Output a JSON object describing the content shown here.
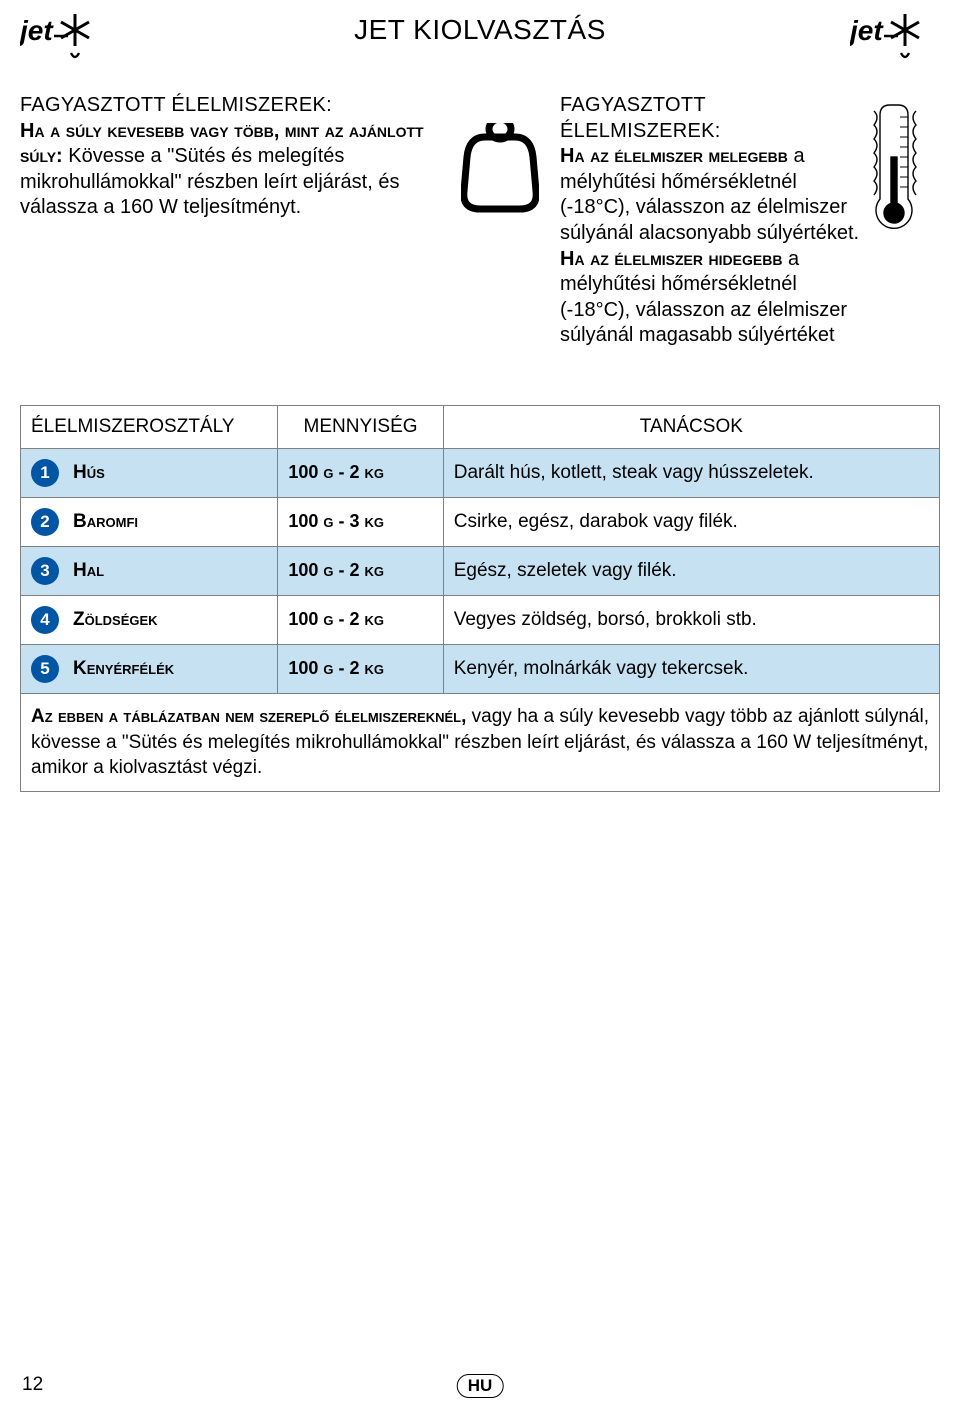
{
  "title": "JET KIOLVASZTÁS",
  "logo_text": "jet",
  "left": {
    "heading": "FAGYASZTOTT ÉLELMISZEREK:",
    "lead_sc": "Ha a súly kevesebb vagy több, mint az ajánlott súly:",
    "body": " Kövesse a \"Sütés és melegítés mikrohullámokkal\" részben leírt eljárást, és válassza a 160 W teljesítményt."
  },
  "right": {
    "heading": "FAGYASZTOTT ÉLELMISZEREK:",
    "p1_sc": "Ha az élelmiszer melegebb",
    "p1_rest": " a mélyhűtési hőmérsékletnél (-18°C), válasszon az élelmiszer súlyánál alacsonyabb súlyértéket.",
    "p2_sc": "Ha az élelmiszer hidegebb",
    "p2_rest": " a mélyhűtési hőmérsékletnél (-18°C), válasszon az élelmiszer súlyánál magasabb súlyértéket"
  },
  "table": {
    "headers": [
      "ÉLELMISZEROSZTÁLY",
      "MENNYISÉG",
      "TANÁCSOK"
    ],
    "col_widths": [
      "28%",
      "18%",
      "54%"
    ],
    "row_colors": {
      "blue": "#c6e2f2",
      "white": "#ffffff"
    },
    "badge_bg": "#0055a4",
    "rows": [
      {
        "n": "1",
        "cat": "Hús",
        "qty": "100 g - 2 kg",
        "tip": "Darált hús, kotlett, steak vagy hússzeletek.",
        "bg": "blue"
      },
      {
        "n": "2",
        "cat": "Baromfi",
        "qty": "100 g - 3 kg",
        "tip": "Csirke, egész, darabok vagy filék.",
        "bg": "white"
      },
      {
        "n": "3",
        "cat": "Hal",
        "qty": "100 g - 2 kg",
        "tip": "Egész, szeletek vagy filék.",
        "bg": "blue"
      },
      {
        "n": "4",
        "cat": "Zöldségek",
        "qty": "100 g - 2 kg",
        "tip": "Vegyes zöldség, borsó, brokkoli stb.",
        "bg": "white"
      },
      {
        "n": "5",
        "cat": "Kenyérfélék",
        "qty": "100 g - 2 kg",
        "tip": "Kenyér, molnárkák vagy tekercsek.",
        "bg": "blue"
      }
    ],
    "note_sc": "Az ebben a táblázatban nem szereplő élelmiszereknél,",
    "note_rest": " vagy ha a súly kevesebb vagy több az ajánlott súlynál, kövesse a \"Sütés és melegítés mikrohullámokkal\" részben leírt eljárást, és válassza a 160 W teljesítményt, amikor a kiolvasztást végzi."
  },
  "page_number": "12",
  "lang_badge": "HU"
}
